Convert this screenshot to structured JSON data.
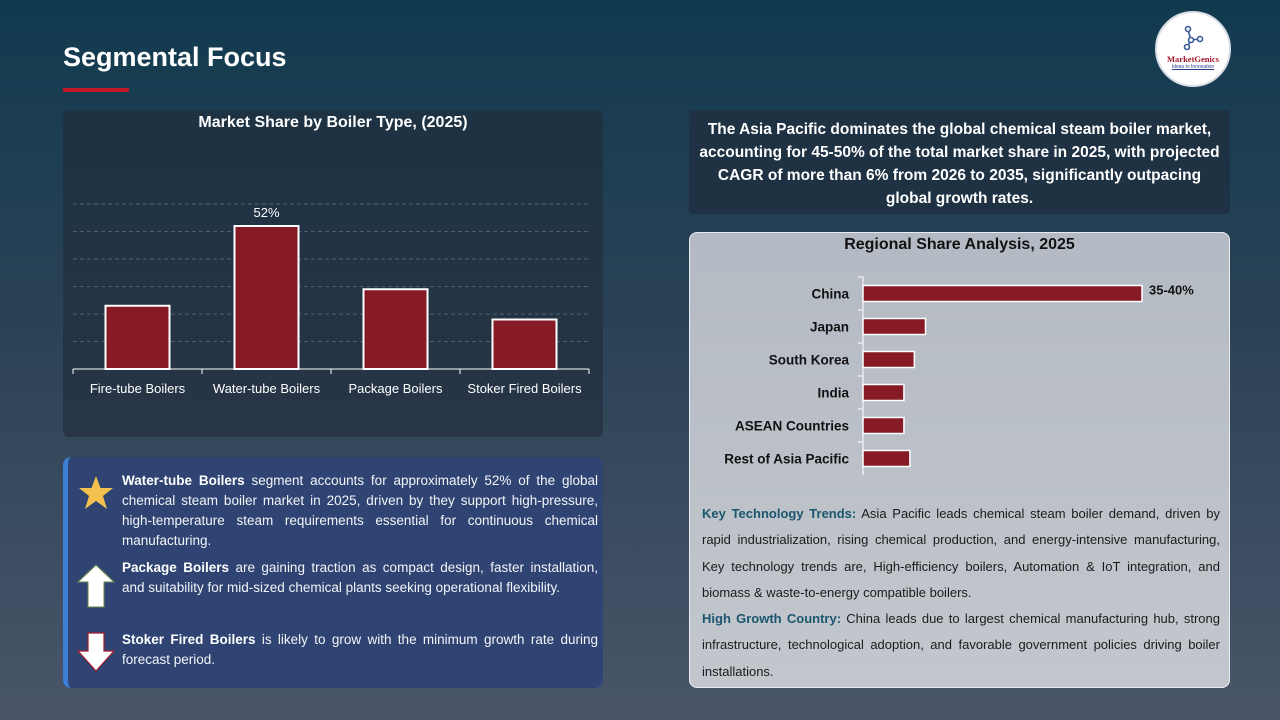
{
  "header": {
    "title": "Segmental Focus",
    "accent_color": "#c0182a"
  },
  "logo": {
    "name": "MarketGenics",
    "tagline": "Ideas to Innovation"
  },
  "chart_data": [
    {
      "type": "bar",
      "title": "Market Share by Boiler Type, (2025)",
      "categories": [
        "Fire-tube Boilers",
        "Water-tube Boilers",
        "Package Boilers",
        "Stoker Fired Boilers"
      ],
      "values": [
        23,
        52,
        29,
        18
      ],
      "data_labels": [
        "",
        "52%",
        "",
        ""
      ],
      "unit": "%",
      "ylim": [
        0,
        60
      ],
      "grid": true,
      "bar_color": "#861b25"
    },
    {
      "type": "bar",
      "orientation": "horizontal",
      "title": "Regional Share Analysis, 2025",
      "categories": [
        "China",
        "Japan",
        "South Korea",
        "India",
        "ASEAN Countries",
        "Rest of Asia Pacific"
      ],
      "values": [
        37.5,
        8.4,
        6.9,
        5.5,
        5.5,
        6.3
      ],
      "data_labels": [
        "35-40%",
        "",
        "",
        "",
        "",
        ""
      ],
      "unit": "%",
      "grid": false,
      "bar_color": "#861b25"
    }
  ],
  "bullets": [
    {
      "icon": "star-icon",
      "bold": "Water-tube Boilers",
      "text": " segment accounts for approximately 52% of the global chemical steam boiler market in 2025, driven by they support high-pressure, high-temperature steam requirements essential for continuous chemical manufacturing."
    },
    {
      "icon": "arrow-up-icon",
      "bold": "Package Boilers",
      "text": " are gaining traction as compact design, faster installation, and suitability for mid-sized chemical plants seeking operational flexibility."
    },
    {
      "icon": "arrow-down-icon",
      "bold": "Stoker Fired Boilers",
      "text": " is likely to grow with the minimum growth rate during forecast period."
    }
  ],
  "summary": "The Asia Pacific dominates the global chemical steam boiler market, accounting for 45-50% of the total market share in 2025, with projected CAGR of more than 6% from 2026 to 2035, significantly outpacing global growth rates.",
  "notes": [
    {
      "heading": "Key Technology Trends:",
      "text": " Asia Pacific leads chemical steam boiler demand, driven by rapid industrialization, rising chemical production, and energy-intensive manufacturing, Key technology trends are, High-efficiency boilers, Automation & IoT integration, and biomass & waste-to-energy compatible boilers."
    },
    {
      "heading": "High Growth Country:",
      "text": " China leads due to largest chemical manufacturing hub, strong infrastructure, technological adoption, and favorable government policies driving boiler installations."
    }
  ]
}
